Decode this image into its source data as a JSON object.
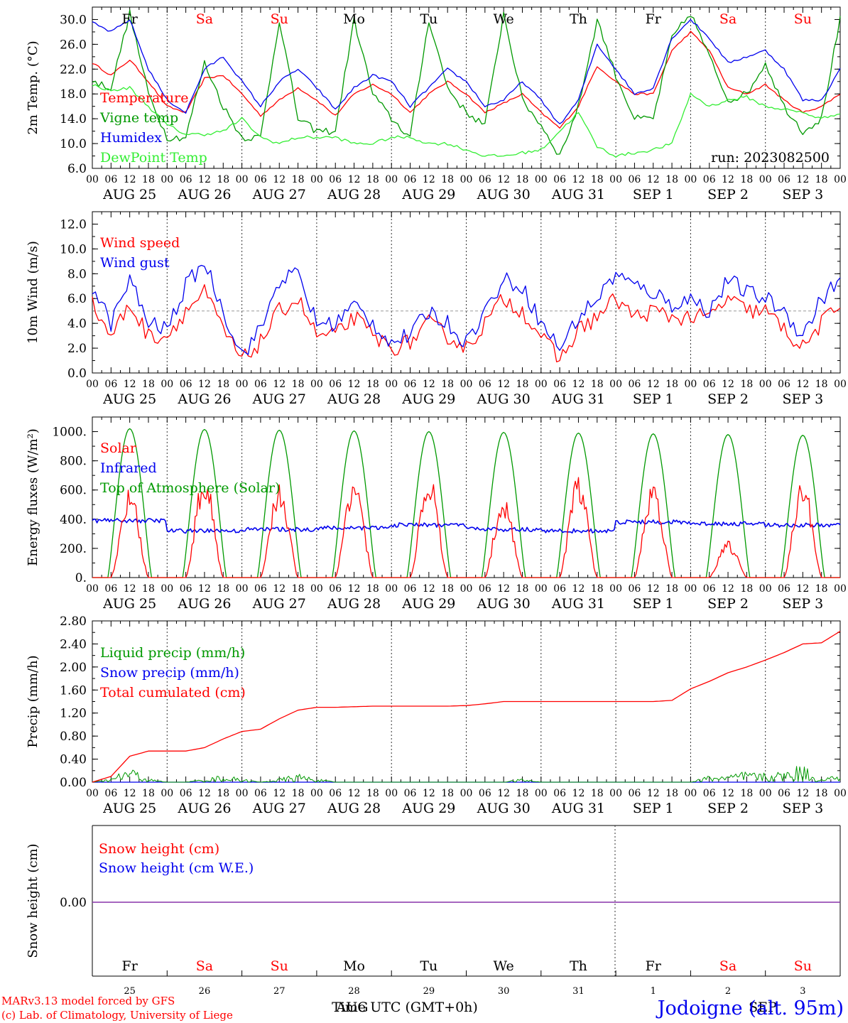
{
  "colors": {
    "red": "#ff0000",
    "green": "#009900",
    "lightgreen": "#33ee33",
    "blue": "#0000ee",
    "purple": "#8833aa",
    "black": "#000000",
    "grey": "#999999"
  },
  "x_axis": {
    "hour_ticks": [
      "00",
      "06",
      "12",
      "18"
    ],
    "dates": [
      "AUG 25",
      "AUG 26",
      "AUG 27",
      "AUG 28",
      "AUG 29",
      "AUG 30",
      "AUG 31",
      "SEP  1",
      "SEP  2",
      "SEP  3"
    ],
    "weekdays": [
      {
        "label": "Fr",
        "weekend": false
      },
      {
        "label": "Sa",
        "weekend": true
      },
      {
        "label": "Su",
        "weekend": true
      },
      {
        "label": "Mo",
        "weekend": false
      },
      {
        "label": "Tu",
        "weekend": false
      },
      {
        "label": "We",
        "weekend": false
      },
      {
        "label": "Th",
        "weekend": false
      },
      {
        "label": "Fr",
        "weekend": false
      },
      {
        "label": "Sa",
        "weekend": true
      },
      {
        "label": "Su",
        "weekend": true
      }
    ],
    "day_numbers": [
      "25",
      "26",
      "27",
      "28",
      "29",
      "30",
      "31",
      "1",
      "2",
      "3"
    ],
    "bottom_label": "Time UTC (GMT+0h)",
    "bottom_label_overlap_1": "AUG",
    "bottom_label_overlap_2": "SEP"
  },
  "footer": {
    "model": "MARv3.13 model forced by GFS",
    "lab": "(c) Lab. of Climatology, University of Liege",
    "station": "Jodoigne (alt. 95m)"
  },
  "chart_data": [
    {
      "id": "temp",
      "type": "line",
      "ylabel": "2m Temp. (°C)",
      "ylim": [
        6,
        32
      ],
      "yticks": [
        6.0,
        10.0,
        14.0,
        18.0,
        22.0,
        26.0,
        30.0
      ],
      "ytick_labels": [
        "6.0",
        "10.0",
        "14.0",
        "18.0",
        "22.0",
        "26.0",
        "30.0"
      ],
      "annotation": "run: 2023082500",
      "x_hours": [
        0,
        6,
        12,
        18,
        24,
        30,
        36,
        42,
        48,
        54,
        60,
        66,
        72,
        78,
        84,
        90,
        96,
        102,
        108,
        114,
        120,
        126,
        132,
        138,
        144,
        150,
        156,
        162,
        168,
        174,
        180,
        186,
        192,
        198,
        204,
        210,
        216,
        222,
        228,
        234,
        240
      ],
      "series": [
        {
          "name": "Temperature",
          "color": "red",
          "values": [
            23,
            21,
            23.5,
            20,
            16,
            15,
            20.5,
            21,
            18,
            14.5,
            17,
            19,
            17,
            14.5,
            18,
            19.5,
            18,
            15,
            18,
            20,
            18,
            15,
            16.5,
            18,
            15,
            12.5,
            16,
            22.5,
            20,
            18,
            18,
            25,
            28,
            25,
            19,
            18,
            19.5,
            17,
            15,
            16,
            18
          ]
        },
        {
          "name": "Vigne temp",
          "color": "green",
          "values": [
            20,
            19,
            31,
            18,
            11,
            11,
            23,
            16,
            11,
            11,
            30,
            14,
            12,
            12,
            30,
            18,
            14,
            11,
            30,
            19,
            15,
            13,
            31,
            17,
            13,
            8,
            16,
            30,
            21,
            14,
            14,
            27,
            31,
            24,
            17,
            18,
            23,
            16,
            12,
            14,
            30
          ]
        },
        {
          "name": "Humidex",
          "color": "blue",
          "values": [
            29.5,
            28,
            30,
            22,
            17,
            15,
            22,
            24,
            20,
            16,
            20,
            22,
            19,
            15.5,
            19,
            21,
            20,
            16,
            19,
            22,
            20,
            16,
            17,
            20,
            17,
            13,
            17,
            26,
            22,
            18,
            19,
            27,
            30,
            27,
            23,
            24,
            25,
            22,
            17,
            17,
            22
          ]
        },
        {
          "name": "DewPoint Temp",
          "color": "lightgreen",
          "values": [
            19.5,
            18.5,
            19,
            16,
            13,
            11.5,
            11.5,
            12,
            14,
            11,
            10,
            11,
            11,
            11,
            10,
            10,
            11,
            11,
            10,
            10,
            9,
            8,
            8,
            8.5,
            9,
            12,
            15,
            9.5,
            8,
            8.5,
            9,
            10,
            18,
            16,
            17,
            17.5,
            16,
            15.5,
            15,
            14,
            15
          ]
        }
      ]
    },
    {
      "id": "wind",
      "type": "line",
      "ylabel": "10m Wind (m/s)",
      "ylim": [
        0,
        13
      ],
      "yticks": [
        0,
        2,
        4,
        6,
        8,
        10,
        12
      ],
      "ytick_labels": [
        "0.0",
        "2.0",
        "4.0",
        "6.0",
        "8.0",
        "10.0",
        "12.0"
      ],
      "reference_line": 5,
      "x_hours": [
        0,
        6,
        12,
        18,
        24,
        30,
        36,
        42,
        48,
        54,
        60,
        66,
        72,
        78,
        84,
        90,
        96,
        102,
        108,
        114,
        120,
        126,
        132,
        138,
        144,
        150,
        156,
        162,
        168,
        174,
        180,
        186,
        192,
        198,
        204,
        210,
        216,
        222,
        228,
        234,
        240
      ],
      "series": [
        {
          "name": "Wind speed",
          "color": "red",
          "values": [
            5.5,
            3,
            5.5,
            3,
            3,
            5,
            6.5,
            3.5,
            1,
            2.5,
            5,
            6,
            3,
            3,
            4.5,
            3,
            2,
            2.5,
            4,
            3,
            2,
            4,
            6,
            5,
            3,
            1,
            3.5,
            4.5,
            6,
            4.5,
            5,
            4.5,
            4.5,
            4.5,
            6,
            5,
            5,
            3.5,
            2,
            4,
            5.5
          ]
        },
        {
          "name": "Wind gust",
          "color": "blue",
          "values": [
            7,
            4,
            7.5,
            4,
            3.5,
            7,
            9,
            5,
            1.5,
            3.5,
            7.5,
            8,
            4,
            4,
            5.5,
            4,
            2.5,
            3,
            5,
            4,
            2.5,
            5,
            7.5,
            7,
            4,
            2,
            4.5,
            6,
            8,
            7,
            6.5,
            5.5,
            6,
            5,
            7.5,
            6.5,
            6,
            5,
            3,
            6,
            7.5
          ]
        }
      ]
    },
    {
      "id": "energy",
      "type": "line",
      "ylabel": "Energy fluxes (W/m²)",
      "ylim": [
        0,
        1100
      ],
      "yticks": [
        0,
        200,
        400,
        600,
        800,
        1000
      ],
      "ytick_labels": [
        "0.",
        "200.",
        "400.",
        "600.",
        "800.",
        "1000."
      ],
      "days": 10,
      "series": [
        {
          "name": "Solar",
          "color": "red",
          "daily_peak": [
            610,
            720,
            660,
            730,
            720,
            570,
            700,
            670,
            250,
            680
          ]
        },
        {
          "name": "Infrared",
          "color": "blue",
          "daily_mean": [
            390,
            320,
            330,
            340,
            360,
            330,
            320,
            380,
            370,
            360
          ]
        },
        {
          "name": "Top of Atmosphere (Solar)",
          "color": "green",
          "daily_peak": [
            1020,
            1015,
            1010,
            1005,
            1000,
            995,
            990,
            985,
            980,
            975
          ]
        }
      ]
    },
    {
      "id": "precip",
      "type": "line",
      "ylabel": "Precip (mm/h)",
      "ylim": [
        0,
        2.8
      ],
      "yticks": [
        0,
        0.4,
        0.8,
        1.2,
        1.6,
        2.0,
        2.4,
        2.8
      ],
      "ytick_labels": [
        "0.00",
        "0.40",
        "0.80",
        "1.20",
        "1.60",
        "2.00",
        "2.40",
        "2.80"
      ],
      "x_hours": [
        0,
        6,
        12,
        18,
        24,
        30,
        36,
        42,
        48,
        54,
        60,
        66,
        72,
        78,
        84,
        90,
        96,
        102,
        108,
        114,
        120,
        126,
        132,
        138,
        144,
        150,
        156,
        162,
        168,
        174,
        180,
        186,
        192,
        198,
        204,
        210,
        216,
        222,
        228,
        234,
        240
      ],
      "series": [
        {
          "name": "Liquid precip (mm/h)",
          "color": "green",
          "values": [
            0,
            0.05,
            0.22,
            0.05,
            0,
            0,
            0.05,
            0.1,
            0.05,
            0,
            0.05,
            0.12,
            0.05,
            0,
            0,
            0,
            0,
            0,
            0,
            0,
            0,
            0,
            0,
            0.05,
            0,
            0,
            0,
            0,
            0,
            0,
            0,
            0,
            0,
            0.1,
            0.1,
            0.15,
            0.12,
            0.15,
            0.25,
            0.05,
            0.12
          ]
        },
        {
          "name": "Snow precip (mm/h)",
          "color": "blue",
          "values": [
            0,
            0,
            0,
            0,
            0,
            0,
            0,
            0,
            0,
            0,
            0,
            0,
            0,
            0,
            0,
            0,
            0,
            0,
            0,
            0,
            0,
            0,
            0,
            0,
            0,
            0,
            0,
            0,
            0,
            0,
            0,
            0,
            0,
            0,
            0,
            0,
            0,
            0,
            0,
            0,
            0
          ]
        },
        {
          "name": "Total cumulated (cm)",
          "color": "red",
          "values": [
            0,
            0.1,
            0.45,
            0.54,
            0.54,
            0.54,
            0.6,
            0.75,
            0.88,
            0.92,
            1.1,
            1.25,
            1.3,
            1.3,
            1.31,
            1.32,
            1.32,
            1.32,
            1.32,
            1.32,
            1.33,
            1.36,
            1.4,
            1.4,
            1.4,
            1.4,
            1.4,
            1.4,
            1.4,
            1.4,
            1.4,
            1.42,
            1.62,
            1.75,
            1.9,
            2.0,
            2.12,
            2.25,
            2.4,
            2.42,
            2.62
          ]
        }
      ]
    },
    {
      "id": "snow",
      "type": "line",
      "ylabel": "Snow height (cm)",
      "ytick_labels": [
        "0.00"
      ],
      "series": [
        {
          "name": "Snow height (cm)",
          "color": "red",
          "values": [
            0,
            0
          ]
        },
        {
          "name": "Snow height (cm W.E.)",
          "color": "blue",
          "values": [
            0,
            0
          ]
        }
      ]
    }
  ]
}
